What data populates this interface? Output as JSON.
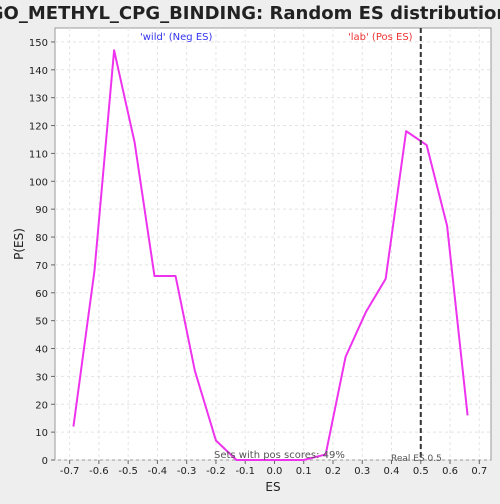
{
  "chart_data": {
    "type": "line",
    "title": "GO_METHYL_CPG_BINDING: Random ES distribution",
    "xlabel": "ES",
    "ylabel": "P(ES)",
    "xlim": [
      -0.75,
      0.74
    ],
    "ylim": [
      0,
      155
    ],
    "xticks": [
      -0.7,
      -0.6,
      -0.5,
      -0.4,
      -0.3,
      -0.2,
      -0.1,
      0.0,
      0.1,
      0.2,
      0.3,
      0.4,
      0.5,
      0.6,
      0.7
    ],
    "xtick_labels": [
      "-0.7",
      "-0.6",
      "-0.5",
      "-0.4",
      "-0.3",
      "-0.2",
      "-0.1",
      "0.0",
      "0.1",
      "0.2",
      "0.3",
      "0.4",
      "0.5",
      "0.6",
      "0.7"
    ],
    "yticks": [
      0,
      10,
      20,
      30,
      40,
      50,
      60,
      70,
      80,
      90,
      100,
      110,
      120,
      130,
      140,
      150
    ],
    "ytick_labels": [
      "0",
      "10",
      "20",
      "30",
      "40",
      "50",
      "60",
      "70",
      "80",
      "90",
      "100",
      "110",
      "120",
      "130",
      "140",
      "150"
    ],
    "grid": true,
    "series": [
      {
        "color": "#ee33ee",
        "x": [
          -0.687,
          -0.615,
          -0.548,
          -0.478,
          -0.41,
          -0.338,
          -0.272,
          -0.2,
          -0.13,
          -0.06,
          0.0,
          0.1,
          0.175,
          0.243,
          0.312,
          0.38,
          0.45,
          0.52,
          0.59,
          0.66
        ],
        "y": [
          12,
          68,
          147,
          114,
          66,
          66,
          32,
          7,
          0,
          0,
          0,
          0,
          2,
          37,
          53,
          65,
          118,
          113,
          84,
          16
        ]
      }
    ],
    "vline": {
      "x": 0.5,
      "label": "Real ES 0.5",
      "color": "#333333"
    },
    "annotations": {
      "neg_label": "'wild' (Neg ES)",
      "neg_color": "#3333ee",
      "pos_label": "'lab' (Pos ES)",
      "pos_color": "#ee3333",
      "footer": "Sets with pos scores: 49%"
    }
  }
}
